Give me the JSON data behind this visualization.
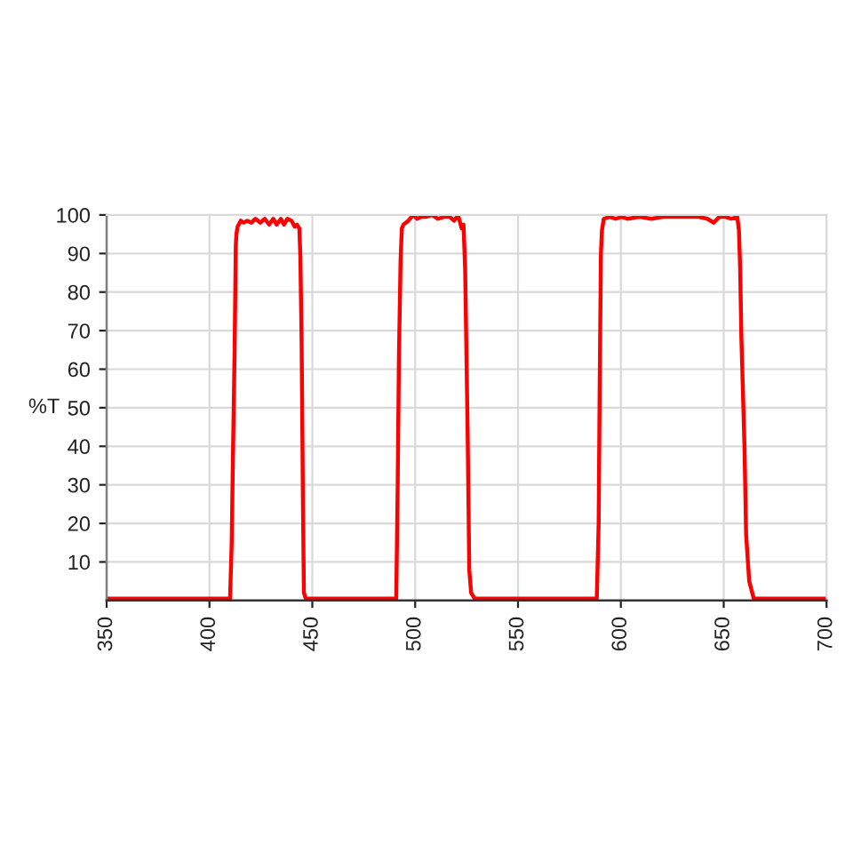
{
  "chart_data": {
    "type": "line",
    "ylabel": "%T",
    "xlim": [
      350,
      700
    ],
    "xticks": [
      350,
      400,
      450,
      500,
      550,
      600,
      650,
      700
    ],
    "ylim": [
      0,
      100
    ],
    "yticks": [
      10,
      20,
      30,
      40,
      50,
      60,
      70,
      80,
      90,
      100
    ],
    "grid": true,
    "marker": "none",
    "line_style": "solid",
    "series": [
      {
        "color": "#ff0000",
        "x": [
          350,
          410,
          410.8,
          411.4,
          412.2,
          412.8,
          413.1,
          413.7,
          415.2,
          416.6,
          418.3,
          420.4,
          422.3,
          424.7,
          426.9,
          429.0,
          431.0,
          432.7,
          434.7,
          436.2,
          437.9,
          439.9,
          441.4,
          442.5,
          443.7,
          444.2,
          444.8,
          445.4,
          445.9,
          446.8,
          490.8,
          491.5,
          492.1,
          492.9,
          493.5,
          494.3,
          496.7,
          499.0,
          501.0,
          503.0,
          505.3,
          508.2,
          511.1,
          514.0,
          516.8,
          518.9,
          520.3,
          521.1,
          522.6,
          523.5,
          524.3,
          525.5,
          526.3,
          527.2,
          528.9,
          588.3,
          589.2,
          589.7,
          590.3,
          590.8,
          591.7,
          594.6,
          597.5,
          600.4,
          603.2,
          609.0,
          614.8,
          620.5,
          626.3,
          632.1,
          637.8,
          642.1,
          645.1,
          647.9,
          650.8,
          653.7,
          656.6,
          657.4,
          658.0,
          658.6,
          660.1,
          660.9,
          662.4,
          664.6,
          665.5,
          700
        ],
        "values": [
          0.5,
          0.5,
          15,
          37,
          64,
          92,
          95,
          97,
          98.5,
          98,
          98.5,
          98,
          99,
          98,
          99,
          97.5,
          99,
          97.5,
          99,
          97.5,
          99,
          98.5,
          97,
          97.5,
          96.5,
          89,
          67,
          28,
          2,
          0.5,
          0.5,
          30,
          63,
          88,
          96.5,
          97.5,
          98.5,
          100,
          99,
          99.5,
          99.5,
          100,
          99,
          99.5,
          99.5,
          98.5,
          99.5,
          99.5,
          96.5,
          97.5,
          86,
          44,
          8,
          2,
          0.5,
          0.5,
          20,
          55,
          90,
          96,
          99,
          99.5,
          99,
          99.5,
          99,
          99.5,
          99,
          99.5,
          99.5,
          99.5,
          99.5,
          99,
          98,
          99.5,
          99.5,
          99,
          99.5,
          96,
          86,
          68,
          40,
          17,
          5,
          0.5,
          0.5,
          0.5
        ]
      }
    ]
  }
}
